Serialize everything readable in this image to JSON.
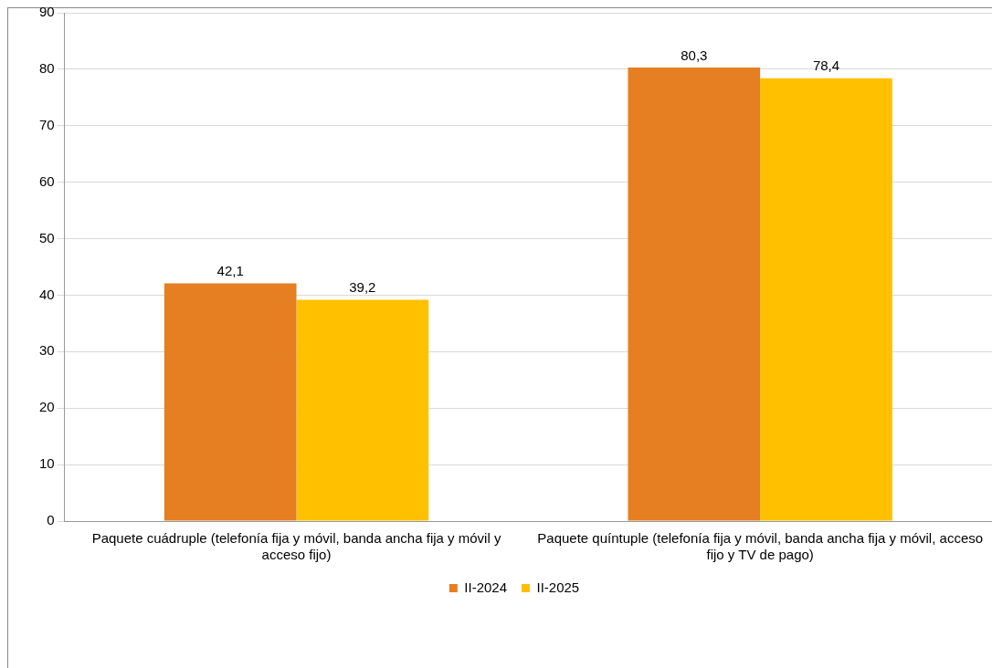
{
  "chart_data": {
    "type": "bar",
    "categories": [
      "Paquete cuádruple (telefonía fija y móvil, banda ancha fija y móvil y acceso fijo)",
      "Paquete quíntuple (telefonía fija y móvil, banda ancha fija y móvil, acceso fijo y TV de pago)"
    ],
    "series": [
      {
        "name": "II-2024",
        "color": "#e67e22",
        "values": [
          42.1,
          80.3
        ],
        "value_labels": [
          "42,1",
          "80,3"
        ]
      },
      {
        "name": "II-2025",
        "color": "#ffc000",
        "values": [
          39.2,
          78.4
        ],
        "value_labels": [
          "39,2",
          "78,4"
        ]
      }
    ],
    "ylim": [
      0,
      90
    ],
    "yticks": [
      0,
      10,
      20,
      30,
      40,
      50,
      60,
      70,
      80,
      90
    ],
    "grid": "y",
    "legend": "bottom"
  }
}
